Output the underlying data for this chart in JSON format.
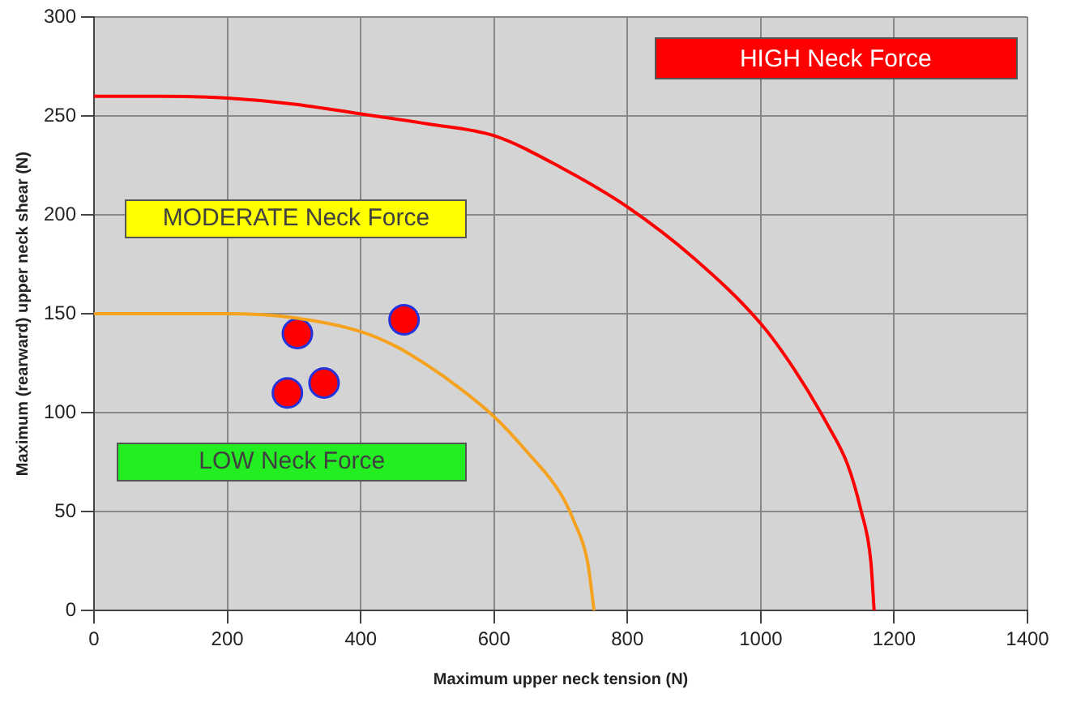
{
  "chart_data": {
    "type": "line",
    "xlabel": "Maximum upper neck tension (N)",
    "ylabel": "Maximum (rearward) upper neck shear (N)",
    "xlim": [
      0,
      1400
    ],
    "xticks": [
      0,
      200,
      400,
      600,
      800,
      1000,
      1200,
      1400
    ],
    "ylim": [
      0,
      300
    ],
    "yticks": [
      0,
      50,
      100,
      150,
      200,
      250,
      300
    ],
    "grid": true,
    "legend": false,
    "annotations": [
      "HIGH Neck Force",
      "MODERATE Neck Force",
      "LOW Neck Force"
    ],
    "series": [
      {
        "type": "line",
        "color": "#ff0000",
        "marker": "none",
        "x": [
          0,
          100,
          200,
          300,
          400,
          500,
          600,
          700,
          800,
          900,
          1000,
          1050,
          1100,
          1130,
          1150,
          1165,
          1170
        ],
        "values": [
          260,
          260,
          259,
          256,
          251,
          246,
          240,
          224,
          204,
          178,
          145,
          122,
          94,
          74,
          51,
          25,
          0
        ]
      },
      {
        "type": "line",
        "color": "#f5a21e",
        "marker": "none",
        "x": [
          0,
          100,
          200,
          300,
          400,
          450,
          500,
          550,
          600,
          650,
          700,
          720,
          740,
          750
        ],
        "values": [
          150,
          150,
          150,
          148,
          141,
          134,
          124,
          112,
          98,
          80,
          59,
          45,
          25,
          0
        ]
      },
      {
        "type": "scatter",
        "color": "#ff0000",
        "marker": "circle",
        "x": [
          290,
          305,
          345,
          465
        ],
        "values": [
          110,
          140,
          115,
          147
        ]
      }
    ]
  }
}
